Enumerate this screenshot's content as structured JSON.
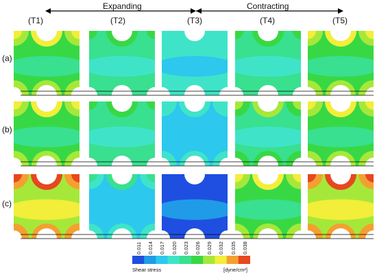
{
  "phases": {
    "left": "Expanding",
    "right": "Contracting"
  },
  "columns": [
    "(T1)",
    "(T2)",
    "(T3)",
    "(T4)",
    "(T5)"
  ],
  "rows": [
    "(a)",
    "(b)",
    "(c)"
  ],
  "legend": {
    "ticks": [
      "0.011",
      "0.014",
      "0.017",
      "0.020",
      "0.023",
      "0.026",
      "0.029",
      "0.032",
      "0.035",
      "0.038"
    ],
    "colors": [
      "#1f4fe0",
      "#1f9be8",
      "#2cc8ee",
      "#3fe4c8",
      "#39e08f",
      "#38d845",
      "#a6e83a",
      "#f2ee3a",
      "#f4a030",
      "#e8471f"
    ],
    "title": "Shear stress",
    "unit": "[dyne/cm²]"
  }
}
